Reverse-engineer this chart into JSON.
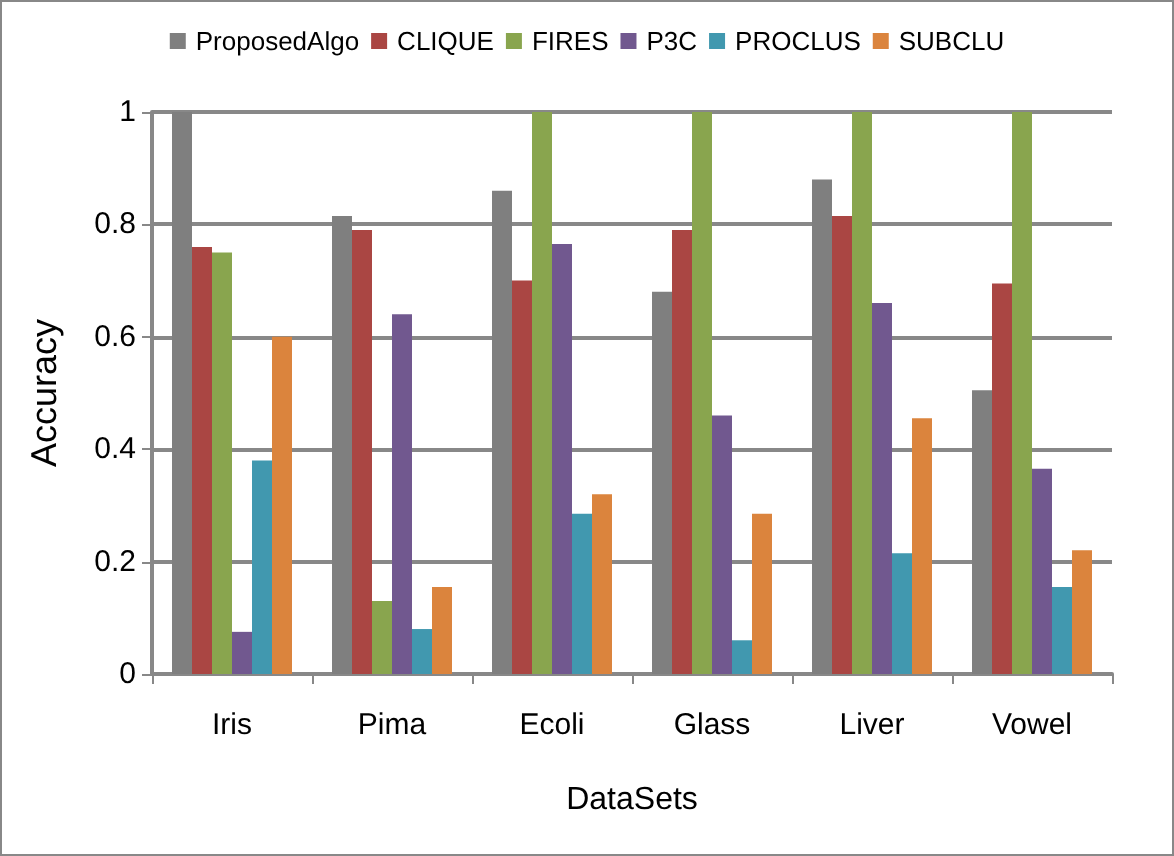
{
  "chart_data": {
    "type": "bar",
    "xlabel": "DataSets",
    "ylabel": "Accuracy",
    "categories": [
      "Iris",
      "Pima",
      "Ecoli",
      "Glass",
      "Liver",
      "Vowel"
    ],
    "series": [
      {
        "name": "ProposedAlgo",
        "color": "#7f7f7f",
        "values": [
          1,
          0.815,
          0.86,
          0.68,
          0.88,
          0.505
        ]
      },
      {
        "name": "CLIQUE",
        "color": "#aa4643",
        "values": [
          0.76,
          0.79,
          0.7,
          0.79,
          0.815,
          0.695
        ]
      },
      {
        "name": "FIRES",
        "color": "#89a54e",
        "values": [
          0.75,
          0.13,
          1,
          1,
          1,
          1
        ]
      },
      {
        "name": "P3C",
        "color": "#71588f",
        "values": [
          0.075,
          0.64,
          0.765,
          0.46,
          0.66,
          0.365
        ]
      },
      {
        "name": "PROCLUS",
        "color": "#4198af",
        "values": [
          0.38,
          0.08,
          0.285,
          0.06,
          0.215,
          0.155
        ]
      },
      {
        "name": "SUBCLU",
        "color": "#db843d",
        "values": [
          0.6,
          0.155,
          0.32,
          0.285,
          0.455,
          0.22
        ]
      }
    ],
    "ylim": [
      0,
      1
    ],
    "yticks": [
      0,
      0.2,
      0.4,
      0.6,
      0.8,
      1
    ],
    "grid": "y",
    "legend": "top"
  }
}
